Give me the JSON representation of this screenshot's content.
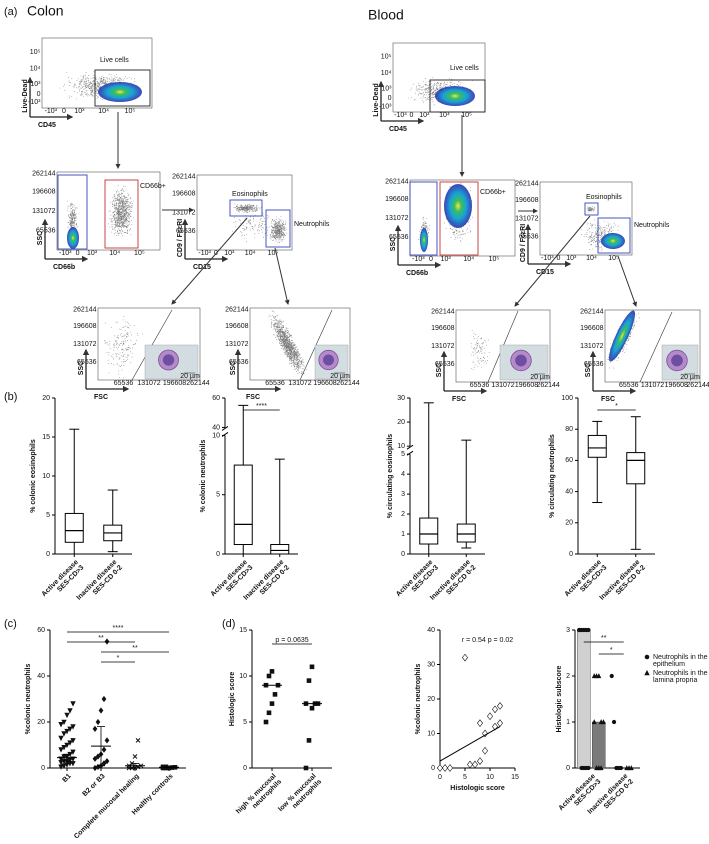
{
  "panel_labels": [
    "(a)",
    "(b)",
    "(c)",
    "(d)"
  ],
  "flow": {
    "log_ticks": [
      "-10³",
      "0",
      "10³",
      "10⁴",
      "10⁵"
    ],
    "linear_ticks": [
      "65536",
      "131072",
      "196608",
      "262144"
    ],
    "scale_label": "20 µm",
    "panels": [
      {
        "title": "Colon",
        "plots": [
          {
            "xlabel": "CD45",
            "ylabel": "Live-Dead",
            "gates": [
              "Live cells"
            ]
          },
          {
            "xlabel": "CD66b",
            "ylabel": "SSC",
            "gates": [
              "CD66b+"
            ]
          },
          {
            "xlabel": "CD15",
            "ylabel": "CD9 / FcεRI",
            "gates": [
              "Eosinophils",
              "Neutrophils"
            ]
          },
          {
            "xlabel": "FSC",
            "ylabel": "SSC",
            "gates": []
          },
          {
            "xlabel": "FSC",
            "ylabel": "SSC",
            "gates": []
          }
        ]
      },
      {
        "title": "Blood",
        "plots": [
          {
            "xlabel": "CD45",
            "ylabel": "Live-Dead",
            "gates": [
              "Live cells"
            ]
          },
          {
            "xlabel": "CD66b",
            "ylabel": "SSC",
            "gates": [
              "CD66b+"
            ]
          },
          {
            "xlabel": "CD15",
            "ylabel": "CD9 / FcεRI",
            "gates": [
              "Eosinophils",
              "Neutrophils"
            ]
          },
          {
            "xlabel": "FSC",
            "ylabel": "SSC",
            "gates": []
          },
          {
            "xlabel": "FSC",
            "ylabel": "SSC",
            "gates": []
          }
        ]
      }
    ]
  },
  "chart_data": [
    {
      "type": "box",
      "ylabel": "% colonic eosinophils",
      "categories": [
        [
          "Active disease",
          "SES-CD>3"
        ],
        [
          "Inactive disease",
          "SES-CD 0-2"
        ]
      ],
      "boxes": [
        {
          "min": 0,
          "q1": 1.5,
          "median": 3,
          "q3": 5.2,
          "max": 16
        },
        {
          "min": 0.3,
          "q1": 1.7,
          "median": 2.7,
          "q3": 3.7,
          "max": 8.2
        }
      ],
      "ylim": [
        0,
        20
      ],
      "yticks": [
        0,
        5,
        10,
        15,
        20
      ]
    },
    {
      "type": "box",
      "ylabel": "% colonic neutrophils",
      "categories": [
        [
          "Active disease",
          "SES-CD>3"
        ],
        [
          "Inactive disease",
          "SES-CD 0-2"
        ]
      ],
      "boxes": [
        {
          "min": 0,
          "q1": 0.8,
          "median": 2.5,
          "q3": 7.5,
          "max": 55
        },
        {
          "min": 0,
          "q1": 0,
          "median": 0.3,
          "q3": 0.8,
          "max": 8
        }
      ],
      "ylim": [
        0,
        60
      ],
      "ybreak": [
        10,
        40
      ],
      "yticks": [
        0,
        5,
        10,
        40,
        60
      ],
      "significance": "****"
    },
    {
      "type": "box",
      "ylabel": "% circulating eosinophils",
      "categories": [
        [
          "Active disease",
          "SES-CD>3"
        ],
        [
          "Inactive disease",
          "SES-CD 0-2"
        ]
      ],
      "boxes": [
        {
          "min": 0,
          "q1": 0.5,
          "median": 1,
          "q3": 1.8,
          "max": 28
        },
        {
          "min": 0.3,
          "q1": 0.6,
          "median": 1,
          "q3": 1.5,
          "max": 12.5
        }
      ],
      "ylim": [
        0,
        30
      ],
      "ybreak": [
        5,
        10
      ],
      "yticks": [
        0,
        1,
        2,
        3,
        4,
        5,
        10,
        20,
        30
      ]
    },
    {
      "type": "box",
      "ylabel": "% circulating neutrophils",
      "categories": [
        [
          "Active disease",
          "SES-CD>3"
        ],
        [
          "Inactive disease",
          "SES-CD 0-2"
        ]
      ],
      "boxes": [
        {
          "min": 33,
          "q1": 62,
          "median": 68,
          "q3": 76,
          "max": 85
        },
        {
          "min": 3,
          "q1": 45,
          "median": 60,
          "q3": 65,
          "max": 88
        }
      ],
      "ylim": [
        0,
        100
      ],
      "yticks": [
        0,
        20,
        40,
        60,
        80,
        100
      ],
      "significance": "*"
    },
    {
      "type": "strip",
      "ylabel": "%colonic neutrophils",
      "categories": [
        "B1",
        "B2 or B3",
        "Complete mucosal healing",
        "Healthy controls"
      ],
      "markers": [
        "triangle-down",
        "diamond",
        "cross",
        "square"
      ],
      "values": [
        [
          0.5,
          1,
          1.5,
          2,
          2,
          2.5,
          3,
          3,
          3.5,
          4,
          4,
          5,
          5,
          6,
          7,
          8,
          9,
          10,
          11,
          12,
          13,
          15,
          16,
          17,
          18,
          19,
          20,
          23,
          25,
          28
        ],
        [
          0,
          0.5,
          1,
          2,
          3,
          4,
          5,
          6,
          8,
          12,
          17,
          20,
          25,
          30,
          55
        ],
        [
          0,
          0,
          0,
          0.5,
          1,
          1,
          2,
          5,
          12
        ],
        [
          0,
          0,
          0,
          0.2,
          0.3,
          0.5,
          0.5
        ]
      ],
      "centers": [
        4.5,
        9.5,
        1,
        0.3
      ],
      "errors": [
        1.5,
        8.5,
        1,
        0.2
      ],
      "comparisons": [
        {
          "label": "****",
          "between": [
            "B1",
            "Healthy controls"
          ]
        },
        {
          "label": "**",
          "between": [
            "B1",
            "Complete mucosal healing"
          ]
        },
        {
          "label": "**",
          "between": [
            "B2 or B3",
            "Healthy controls"
          ]
        },
        {
          "label": "*",
          "between": [
            "B2 or B3",
            "Complete mucosal healing"
          ]
        }
      ],
      "ylim": [
        0,
        60
      ],
      "yticks": [
        0,
        20,
        40,
        60
      ]
    },
    {
      "type": "strip",
      "ylabel": "Histologic score",
      "categories": [
        [
          "high % mucosal",
          "neutrophils"
        ],
        [
          "low % mucosal",
          "neutrophils"
        ]
      ],
      "markers": [
        "square",
        "square"
      ],
      "values": [
        [
          5,
          6,
          7,
          8,
          9,
          9,
          10,
          10.5
        ],
        [
          0,
          3,
          6.5,
          7,
          7,
          7,
          9.5,
          11
        ]
      ],
      "centers": [
        9,
        7
      ],
      "comparisons": [
        {
          "label": "p = 0.0635",
          "between": [
            [
              "high % mucosal",
              "neutrophils"
            ],
            [
              "low % mucosal",
              "neutrophils"
            ]
          ]
        }
      ],
      "ylim": [
        0,
        15
      ],
      "yticks": [
        0,
        5,
        10,
        15
      ]
    },
    {
      "type": "scatter",
      "ylabel": "%colonic neutrophils",
      "xlabel": "Histologic score",
      "annotation": "r = 0.54 p = 0.02",
      "x": [
        0,
        1,
        2,
        5,
        6,
        7,
        8,
        8,
        9,
        9,
        10,
        11,
        11,
        12,
        12
      ],
      "y": [
        0,
        0,
        0,
        32,
        1,
        1,
        2,
        13,
        10,
        5,
        15,
        17,
        12,
        18,
        13
      ],
      "fit": {
        "x": [
          0,
          12
        ],
        "y": [
          2,
          12
        ]
      },
      "xlim": [
        0,
        15
      ],
      "xticks": [
        0,
        5,
        10,
        15
      ],
      "ylim": [
        0,
        40
      ],
      "yticks": [
        0,
        10,
        20,
        30,
        40
      ]
    },
    {
      "type": "bar",
      "ylabel": "Histologic subscore",
      "categories": [
        [
          "Active disease",
          "SES-CD>3"
        ],
        [
          "Inactive disease",
          "SES-CD 0-2"
        ]
      ],
      "series": [
        {
          "name": "Neutrophils in the epithelium",
          "marker": "circle",
          "color": "#d0d0d0",
          "values": [
            3,
            0
          ],
          "points": [
            [
              3,
              3,
              3,
              3,
              3,
              3,
              0,
              0,
              0,
              0
            ],
            [
              2,
              1,
              0,
              0,
              0
            ]
          ]
        },
        {
          "name": "Neutrophils in the lamina propria",
          "marker": "triangle",
          "color": "#7a7a7a",
          "values": [
            1,
            0
          ],
          "points": [
            [
              2,
              2,
              2,
              1,
              1,
              1,
              0,
              0,
              0
            ],
            [
              0,
              0,
              0
            ]
          ]
        }
      ],
      "significance": [
        "**",
        "*"
      ],
      "ylim": [
        0,
        3
      ],
      "yticks": [
        0,
        1,
        2,
        3
      ]
    }
  ]
}
